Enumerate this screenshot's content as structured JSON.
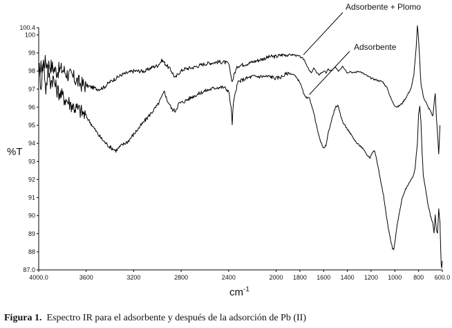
{
  "figure": {
    "caption_label": "Figura  1.",
    "caption_text": "Espectro IR para el adsorbente y después de la adsorción de Pb (II)"
  },
  "chart_data": {
    "type": "line",
    "title": "",
    "xlabel": "cm",
    "xlabel_superscript": "-1",
    "ylabel": "%T",
    "xlim": [
      4000,
      600
    ],
    "ylim": [
      87.0,
      100.4
    ],
    "x_reversed": true,
    "grid": false,
    "x_ticks": [
      {
        "value": 4000,
        "label": "4000.0"
      },
      {
        "value": 3600,
        "label": "3600"
      },
      {
        "value": 3200,
        "label": "3200"
      },
      {
        "value": 2800,
        "label": "2800"
      },
      {
        "value": 2400,
        "label": "2400"
      },
      {
        "value": 2000,
        "label": "2000"
      },
      {
        "value": 1800,
        "label": "1800"
      },
      {
        "value": 1600,
        "label": "1600"
      },
      {
        "value": 1400,
        "label": "1400"
      },
      {
        "value": 1200,
        "label": "1200"
      },
      {
        "value": 1000,
        "label": "1000"
      },
      {
        "value": 800,
        "label": "800"
      },
      {
        "value": 600,
        "label": "600.0"
      }
    ],
    "y_ticks": [
      {
        "value": 100.4,
        "label": "100.4"
      },
      {
        "value": 100,
        "label": "100"
      },
      {
        "value": 99,
        "label": "99"
      },
      {
        "value": 98,
        "label": "98"
      },
      {
        "value": 97,
        "label": "97"
      },
      {
        "value": 96,
        "label": "96"
      },
      {
        "value": 95,
        "label": "95"
      },
      {
        "value": 94,
        "label": "94"
      },
      {
        "value": 93,
        "label": "93"
      },
      {
        "value": 92,
        "label": "92"
      },
      {
        "value": 91,
        "label": "91"
      },
      {
        "value": 90,
        "label": "90"
      },
      {
        "value": 89,
        "label": "89"
      },
      {
        "value": 88,
        "label": "88"
      },
      {
        "value": 87,
        "label": "87.0"
      }
    ],
    "series": [
      {
        "name": "Adsorbente + Plomo",
        "color": "#000000",
        "points": [
          [
            4000,
            98.0
          ],
          [
            3950,
            98.5
          ],
          [
            3900,
            98.3
          ],
          [
            3850,
            98.0
          ],
          [
            3800,
            98.1
          ],
          [
            3750,
            97.8
          ],
          [
            3700,
            97.6
          ],
          [
            3650,
            97.3
          ],
          [
            3600,
            97.2
          ],
          [
            3550,
            97.1
          ],
          [
            3500,
            97.0
          ],
          [
            3450,
            97.1
          ],
          [
            3400,
            97.4
          ],
          [
            3350,
            97.6
          ],
          [
            3300,
            97.8
          ],
          [
            3250,
            97.9
          ],
          [
            3200,
            98.0
          ],
          [
            3150,
            98.0
          ],
          [
            3100,
            98.0
          ],
          [
            3050,
            98.2
          ],
          [
            3000,
            98.3
          ],
          [
            2960,
            98.6
          ],
          [
            2920,
            98.3
          ],
          [
            2880,
            98.0
          ],
          [
            2850,
            97.6
          ],
          [
            2820,
            97.9
          ],
          [
            2780,
            98.1
          ],
          [
            2700,
            98.2
          ],
          [
            2600,
            98.4
          ],
          [
            2500,
            98.5
          ],
          [
            2440,
            98.5
          ],
          [
            2400,
            98.4
          ],
          [
            2370,
            97.4
          ],
          [
            2350,
            97.9
          ],
          [
            2320,
            98.3
          ],
          [
            2250,
            98.4
          ],
          [
            2200,
            98.5
          ],
          [
            2100,
            98.7
          ],
          [
            2050,
            98.8
          ],
          [
            2000,
            98.8
          ],
          [
            1950,
            98.9
          ],
          [
            1900,
            98.9
          ],
          [
            1850,
            98.9
          ],
          [
            1800,
            98.8
          ],
          [
            1760,
            98.6
          ],
          [
            1740,
            98.3
          ],
          [
            1720,
            98.0
          ],
          [
            1700,
            97.9
          ],
          [
            1680,
            98.2
          ],
          [
            1660,
            97.9
          ],
          [
            1640,
            97.8
          ],
          [
            1620,
            97.9
          ],
          [
            1600,
            98.0
          ],
          [
            1580,
            97.9
          ],
          [
            1560,
            98.1
          ],
          [
            1540,
            98.0
          ],
          [
            1520,
            98.1
          ],
          [
            1500,
            98.2
          ],
          [
            1480,
            98.0
          ],
          [
            1460,
            98.1
          ],
          [
            1440,
            98.3
          ],
          [
            1420,
            98.1
          ],
          [
            1400,
            97.9
          ],
          [
            1380,
            98.0
          ],
          [
            1350,
            97.9
          ],
          [
            1300,
            98.0
          ],
          [
            1250,
            97.8
          ],
          [
            1200,
            97.6
          ],
          [
            1150,
            97.5
          ],
          [
            1100,
            97.4
          ],
          [
            1080,
            97.2
          ],
          [
            1060,
            97.0
          ],
          [
            1040,
            96.6
          ],
          [
            1020,
            96.3
          ],
          [
            1000,
            96.1
          ],
          [
            980,
            96.0
          ],
          [
            960,
            96.1
          ],
          [
            940,
            96.2
          ],
          [
            900,
            96.6
          ],
          [
            860,
            97.1
          ],
          [
            840,
            97.8
          ],
          [
            820,
            99.3
          ],
          [
            810,
            100.5
          ],
          [
            800,
            99.8
          ],
          [
            790,
            98.5
          ],
          [
            780,
            97.3
          ],
          [
            760,
            96.6
          ],
          [
            740,
            96.3
          ],
          [
            720,
            96.0
          ],
          [
            700,
            95.8
          ],
          [
            680,
            95.5
          ],
          [
            660,
            96.8
          ],
          [
            650,
            95.4
          ],
          [
            640,
            94.5
          ],
          [
            630,
            93.4
          ],
          [
            620,
            95.0
          ]
        ]
      },
      {
        "name": "Adsorbente",
        "color": "#000000",
        "points": [
          [
            4000,
            98.2
          ],
          [
            3980,
            97.2
          ],
          [
            3960,
            98.6
          ],
          [
            3940,
            97.0
          ],
          [
            3920,
            98.0
          ],
          [
            3900,
            97.4
          ],
          [
            3880,
            97.6
          ],
          [
            3850,
            97.0
          ],
          [
            3800,
            96.6
          ],
          [
            3750,
            96.3
          ],
          [
            3700,
            96.0
          ],
          [
            3650,
            95.8
          ],
          [
            3600,
            95.5
          ],
          [
            3550,
            95.0
          ],
          [
            3500,
            94.5
          ],
          [
            3450,
            94.1
          ],
          [
            3400,
            93.8
          ],
          [
            3350,
            93.6
          ],
          [
            3300,
            93.9
          ],
          [
            3250,
            94.1
          ],
          [
            3200,
            94.5
          ],
          [
            3150,
            94.9
          ],
          [
            3100,
            95.3
          ],
          [
            3050,
            95.7
          ],
          [
            3000,
            96.1
          ],
          [
            2960,
            96.6
          ],
          [
            2940,
            96.9
          ],
          [
            2920,
            96.4
          ],
          [
            2900,
            96.2
          ],
          [
            2880,
            95.9
          ],
          [
            2850,
            95.8
          ],
          [
            2820,
            96.2
          ],
          [
            2780,
            96.3
          ],
          [
            2700,
            96.6
          ],
          [
            2600,
            96.9
          ],
          [
            2500,
            97.1
          ],
          [
            2440,
            97.1
          ],
          [
            2400,
            96.9
          ],
          [
            2380,
            96.0
          ],
          [
            2370,
            95.1
          ],
          [
            2360,
            96.2
          ],
          [
            2340,
            96.9
          ],
          [
            2320,
            97.4
          ],
          [
            2250,
            97.6
          ],
          [
            2200,
            97.7
          ],
          [
            2100,
            97.7
          ],
          [
            2050,
            97.7
          ],
          [
            2000,
            97.6
          ],
          [
            1950,
            97.7
          ],
          [
            1900,
            97.9
          ],
          [
            1850,
            97.8
          ],
          [
            1800,
            97.4
          ],
          [
            1780,
            97.0
          ],
          [
            1760,
            96.6
          ],
          [
            1740,
            96.5
          ],
          [
            1720,
            96.5
          ],
          [
            1700,
            96.1
          ],
          [
            1680,
            95.6
          ],
          [
            1660,
            95.0
          ],
          [
            1640,
            94.4
          ],
          [
            1620,
            94.0
          ],
          [
            1600,
            93.7
          ],
          [
            1580,
            93.9
          ],
          [
            1560,
            94.6
          ],
          [
            1540,
            95.1
          ],
          [
            1520,
            95.6
          ],
          [
            1500,
            96.0
          ],
          [
            1480,
            96.1
          ],
          [
            1460,
            95.6
          ],
          [
            1440,
            95.2
          ],
          [
            1420,
            95.0
          ],
          [
            1400,
            94.8
          ],
          [
            1360,
            94.4
          ],
          [
            1320,
            94.0
          ],
          [
            1280,
            93.8
          ],
          [
            1240,
            93.4
          ],
          [
            1210,
            93.2
          ],
          [
            1190,
            93.5
          ],
          [
            1170,
            93.6
          ],
          [
            1150,
            93.0
          ],
          [
            1130,
            92.3
          ],
          [
            1100,
            91.3
          ],
          [
            1080,
            90.4
          ],
          [
            1060,
            89.5
          ],
          [
            1040,
            88.8
          ],
          [
            1020,
            88.2
          ],
          [
            1010,
            88.1
          ],
          [
            1000,
            88.5
          ],
          [
            980,
            89.5
          ],
          [
            960,
            90.2
          ],
          [
            940,
            90.9
          ],
          [
            920,
            91.3
          ],
          [
            900,
            91.6
          ],
          [
            870,
            91.9
          ],
          [
            850,
            92.1
          ],
          [
            830,
            92.6
          ],
          [
            810,
            94.0
          ],
          [
            800,
            95.6
          ],
          [
            790,
            96.1
          ],
          [
            780,
            95.2
          ],
          [
            770,
            93.5
          ],
          [
            760,
            92.2
          ],
          [
            740,
            91.4
          ],
          [
            720,
            90.6
          ],
          [
            700,
            90.0
          ],
          [
            680,
            89.6
          ],
          [
            670,
            89.0
          ],
          [
            660,
            90.0
          ],
          [
            650,
            89.2
          ],
          [
            640,
            89.0
          ],
          [
            630,
            90.4
          ],
          [
            620,
            89.6
          ],
          [
            615,
            88.5
          ],
          [
            610,
            87.3
          ],
          [
            605,
            87.1
          ],
          [
            600,
            87.5
          ]
        ]
      }
    ],
    "annotations": [
      {
        "text": "Adsorbente + Plomo",
        "series": "Adsorbente + Plomo",
        "from": [
          1770,
          98.9
        ]
      },
      {
        "text": "Adsorbente",
        "series": "Adsorbente",
        "from": [
          1720,
          96.7
        ]
      }
    ]
  }
}
